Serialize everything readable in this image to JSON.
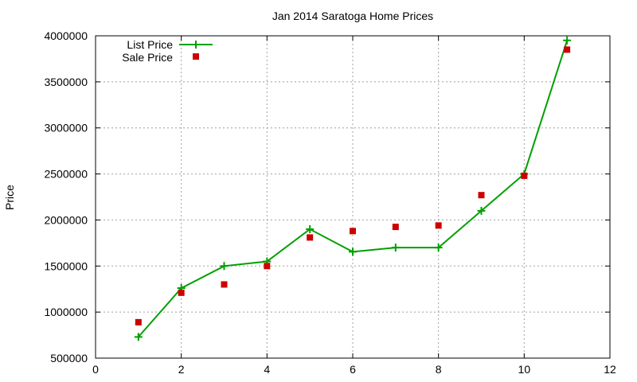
{
  "chart_data": {
    "type": "line",
    "title": "Jan 2014 Saratoga Home Prices",
    "xlabel": "",
    "ylabel": "Price",
    "xlim": [
      0,
      12
    ],
    "ylim": [
      500000,
      4000000
    ],
    "x_ticks": [
      0,
      2,
      4,
      6,
      8,
      10,
      12
    ],
    "y_ticks": [
      500000,
      1000000,
      1500000,
      2000000,
      2500000,
      3000000,
      3500000,
      4000000
    ],
    "grid": true,
    "legend_position": "top-left",
    "series": [
      {
        "name": "List Price",
        "style": "line-with-plus-markers",
        "color": "#00a000",
        "points": [
          [
            1,
            730000
          ],
          [
            2,
            1260000
          ],
          [
            3,
            1500000
          ],
          [
            4,
            1550000
          ],
          [
            5,
            1900000
          ],
          [
            6,
            1655000
          ],
          [
            7,
            1700000
          ],
          [
            8,
            1700000
          ],
          [
            9,
            2100000
          ],
          [
            10,
            2500000
          ],
          [
            11,
            3950000
          ]
        ]
      },
      {
        "name": "Sale Price",
        "style": "square-markers",
        "color": "#cc0000",
        "points": [
          [
            1,
            890000
          ],
          [
            2,
            1210000
          ],
          [
            3,
            1300000
          ],
          [
            4,
            1500000
          ],
          [
            5,
            1810000
          ],
          [
            6,
            1880000
          ],
          [
            7,
            1925000
          ],
          [
            8,
            1940000
          ],
          [
            9,
            2270000
          ],
          [
            10,
            2480000
          ],
          [
            11,
            3850000
          ]
        ]
      }
    ]
  }
}
